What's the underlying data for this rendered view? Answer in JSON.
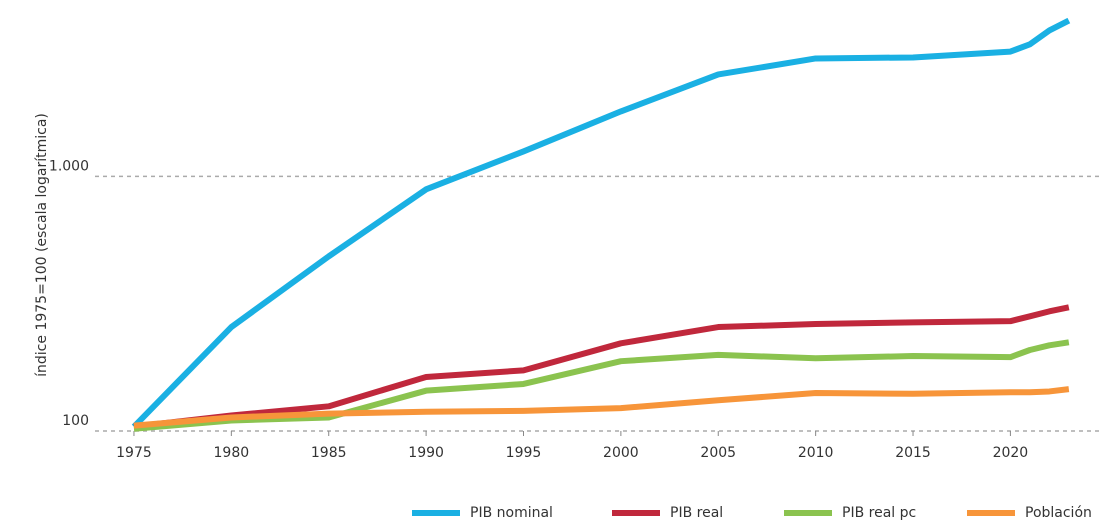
{
  "chart_data": {
    "type": "line",
    "log_scale": true,
    "grid": true,
    "legend": "bottom",
    "ylabel": "índice 1975=100 (escala logarítmica)",
    "x": [
      1975,
      1980,
      1985,
      1990,
      1995,
      2000,
      2005,
      2010,
      2015,
      2020,
      2021,
      2022,
      2023
    ],
    "xlim": [
      1973,
      2024.6
    ],
    "xticks": [
      1975,
      1980,
      1985,
      1990,
      1995,
      2000,
      2005,
      2010,
      2015,
      2020
    ],
    "ylim": [
      100,
      4500
    ],
    "yticks": [
      100,
      {
        "value": 1000,
        "label": "1.000"
      }
    ],
    "series": [
      {
        "name": "PIB nominal",
        "color": "#1ab0e3",
        "values": [
          104,
          256,
          485,
          889,
          1253,
          1799,
          2512,
          2904,
          2930,
          3090,
          3300,
          3740,
          4090
        ]
      },
      {
        "name": "PIB real",
        "color": "#c0283c",
        "values": [
          104,
          115,
          125,
          163,
          173,
          221,
          256,
          263,
          267,
          270,
          282,
          295,
          306
        ]
      },
      {
        "name": "PIB real pc",
        "color": "#8bc34f",
        "values": [
          102,
          110,
          113,
          144,
          153,
          188,
          199,
          193,
          197,
          195,
          208,
          217,
          223
        ]
      },
      {
        "name": "Población",
        "color": "#f7953a",
        "values": [
          105,
          113,
          117,
          119,
          120,
          123,
          132,
          141,
          140,
          142,
          142,
          143,
          146
        ]
      }
    ]
  }
}
